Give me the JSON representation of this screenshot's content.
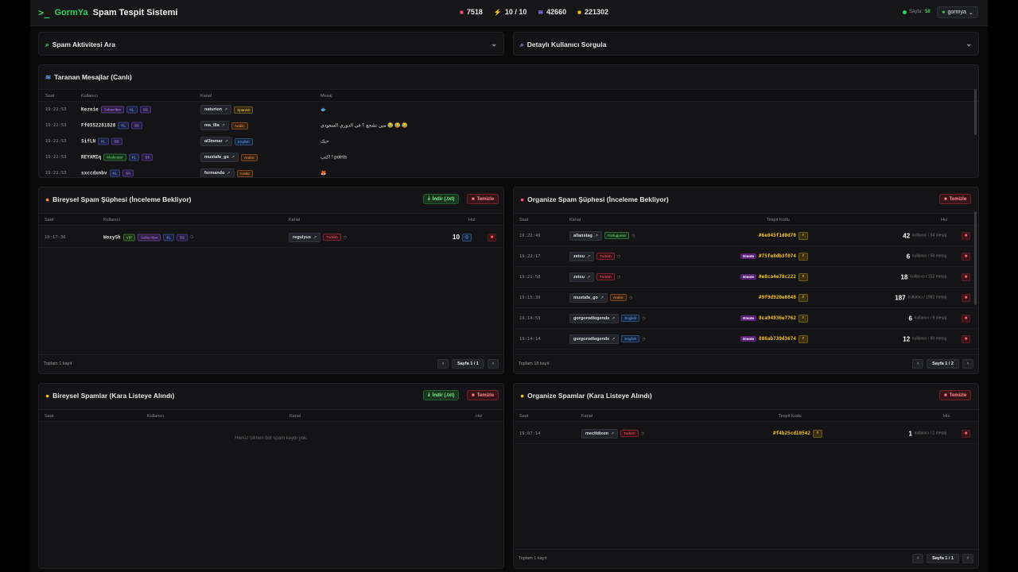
{
  "navbar": {
    "brand_first": "GormYa",
    "brand_second": "Spam Tespit Sistemi",
    "stats": [
      {
        "icon": "video-icon",
        "value": "7518",
        "color": "#ff4d6d"
      },
      {
        "icon": "bolt-icon",
        "value": "10 / 10",
        "color": "#5aa8ff"
      },
      {
        "icon": "satellite-icon",
        "value": "42660",
        "color": "#8f7cff"
      },
      {
        "icon": "database-icon",
        "value": "221302",
        "color": "#f5c518"
      }
    ],
    "online_label": "Sayfa:",
    "online_count": "58",
    "user": "gormya"
  },
  "search_activity": {
    "title": "Spam Aktivitesi Ara"
  },
  "user_query": {
    "title": "Detaylı Kullanıcı Sorgula"
  },
  "live": {
    "title": "Taranan Mesajlar (Canlı)",
    "headers": {
      "time": "Saat",
      "user": "Kullanıcı",
      "channel": "Kanal",
      "message": "Mesaj"
    },
    "rows": [
      {
        "time": "19:22:53",
        "user": "Keznie",
        "tags": [
          "Subscriber",
          "KL",
          "SS"
        ],
        "channel": "naturion",
        "lang": "Spanish",
        "message": "🐟"
      },
      {
        "time": "19:22:53",
        "user": "Ff0552281828",
        "tags": [
          "KL",
          "SS"
        ],
        "channel": "ma_l8a",
        "lang": "Arabic",
        "message": "مين تشجع ؟ في الدوري السعودي 😂 😂 😂"
      },
      {
        "time": "19:22:53",
        "user": "SifLN",
        "tags": [
          "KL",
          "SS"
        ],
        "channel": "al3mmar",
        "lang": "English",
        "message": "حيك"
      },
      {
        "time": "19:22:53",
        "user": "REYAMIq",
        "tags": [
          "Moderator",
          "KL",
          "SS"
        ],
        "channel": "mustafa_go",
        "lang": "Arabic",
        "message": "اكتب ! points"
      },
      {
        "time": "19:22:53",
        "user": "sxccdxnbv",
        "tags": [
          "KL",
          "SS"
        ],
        "channel": "formando",
        "lang": "Arabic",
        "message": "🦊"
      }
    ]
  },
  "individual_suspect": {
    "title": "Bireysel Spam Şüphesi (İnceleme Bekliyor)",
    "download": "İndir (.txt)",
    "clear": "Temizle",
    "headers": {
      "time": "Saat",
      "user": "Kullanıcı",
      "channel": "Kanal",
      "speed": "Hız"
    },
    "rows": [
      {
        "time": "19:17:30",
        "user": "WoxySh",
        "tags": [
          "VIP",
          "Subscriber",
          "KL",
          "SS"
        ],
        "channel": "regulyus",
        "lang": "Turkish",
        "speed": "10"
      }
    ],
    "total": "Toplam 1 kayıt",
    "page": "Sayfa 1 / 1"
  },
  "organized_suspect": {
    "title": "Organize Spam Şüphesi (İnceleme Bekliyor)",
    "clear": "Temizle",
    "headers": {
      "time": "Saat",
      "channel": "Kanal",
      "code": "Tespit Kodu",
      "speed": "Hız"
    },
    "rows": [
      {
        "time": "19:22:49",
        "channel": "allanstag",
        "lang": "Portuguese",
        "emote": "",
        "code": "#6e045f1d0d70",
        "speed": "42",
        "sub": "kullanıcı / 54 mesaj"
      },
      {
        "time": "19:22:17",
        "channel": "zetsu",
        "lang": "Turkish",
        "emote": "Emote",
        "code": "#75fe8db3f074",
        "speed": "6",
        "sub": "kullanıcı / 50 mesaj"
      },
      {
        "time": "19:21:58",
        "channel": "zetsu",
        "lang": "Turkish",
        "emote": "Emote",
        "code": "#e8ca4e70c222",
        "speed": "18",
        "sub": "kullanıcı / 152 mesaj"
      },
      {
        "time": "19:15:39",
        "channel": "mustafa_go",
        "lang": "Arabic",
        "emote": "",
        "code": "#9f9d920e0848",
        "speed": "187",
        "sub": "kullanıcı / 1982 mesaj"
      },
      {
        "time": "19:14:53",
        "channel": "gorgorodlegends",
        "lang": "English",
        "emote": "Emote",
        "code": "8ca94936e7762",
        "speed": "6",
        "sub": "kullanıcı / 9 mesaj"
      },
      {
        "time": "19:14:14",
        "channel": "gorgorodlegends",
        "lang": "English",
        "emote": "Emote",
        "code": "886ab739d3674",
        "speed": "12",
        "sub": "kullanıcı / 80 mesaj"
      }
    ],
    "total": "Toplam 18 kayıt",
    "page": "Sayfa 1 / 2"
  },
  "individual_blacklist": {
    "title": "Bireysel Spamlar (Kara Listeye Alındı)",
    "download": "İndir (.txt)",
    "clear": "Temizle",
    "headers": {
      "time": "Saat",
      "user": "Kullanıcı",
      "channel": "Kanal",
      "speed": "Hız"
    },
    "empty": "Henüz bilinen bot spam kaydı yok."
  },
  "organized_blacklist": {
    "title": "Organize Spamlar (Kara Listeye Alındı)",
    "clear": "Temizle",
    "headers": {
      "time": "Saat",
      "channel": "Kanal",
      "code": "Tespit Kodu",
      "speed": "Hız"
    },
    "rows": [
      {
        "time": "19:07:14",
        "channel": "mecitdixon",
        "lang": "Turkish",
        "code": "#f4b25cd10542",
        "speed": "1",
        "sub": "kullanıcı / 1 mesaj"
      }
    ],
    "total": "Toplam 1 kayıt",
    "page": "Sayfa 1 / 1"
  }
}
